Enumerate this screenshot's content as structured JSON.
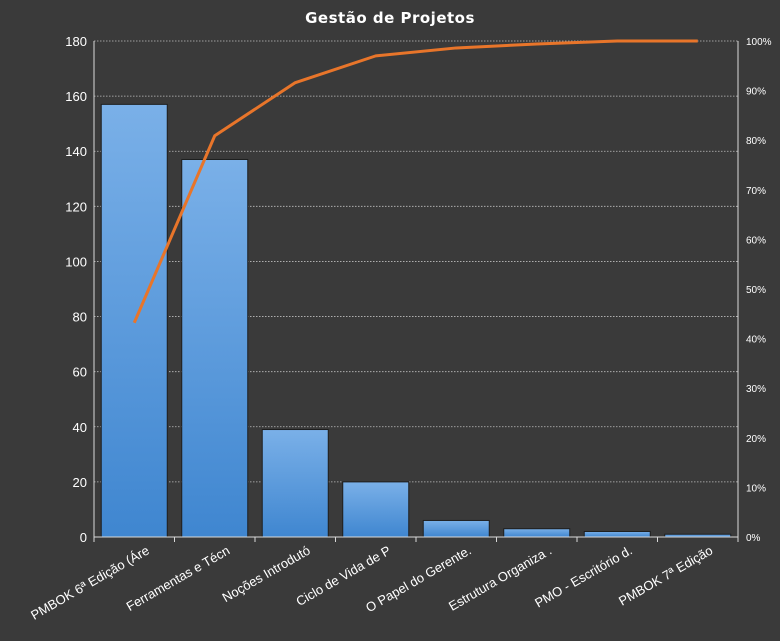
{
  "chart_data": {
    "type": "bar",
    "title": "Gestão de Projetos",
    "categories": [
      "PMBOK 6ª Edição (Áre",
      "Ferramentas  e Técn",
      "Noções Introdutó",
      "Ciclo de Vida de P",
      "O Papel do Gerente.",
      "Estrutura  Organiza .",
      "PMO - Escritório d.",
      "PMBOK 7ª Edição"
    ],
    "series": [
      {
        "type": "bar",
        "values": [
          157,
          137,
          39,
          20,
          6,
          3,
          2,
          1
        ]
      },
      {
        "type": "line",
        "axis": "right",
        "values": [
          43.2,
          80.9,
          91.6,
          97.0,
          98.6,
          99.4,
          100.0,
          100.0
        ]
      }
    ],
    "y_left": {
      "ylim": [
        0,
        180
      ],
      "ticks": [
        "0",
        "20",
        "40",
        "60",
        "80",
        "100",
        "120",
        "140",
        "160",
        "180"
      ]
    },
    "y_right": {
      "ylim": [
        0,
        100
      ],
      "ticks": [
        "0%",
        "10%",
        "20%",
        "30%",
        "40%",
        "50%",
        "60%",
        "70%",
        "80%",
        "90%",
        "100%"
      ]
    },
    "grid": true,
    "legend": "none",
    "colors": {
      "background": "#3a3a3a",
      "bar": "#4a8fd6",
      "bar_light": "#7ab0e8",
      "line": "#e8752a",
      "grid": "#bfbfbf"
    }
  }
}
